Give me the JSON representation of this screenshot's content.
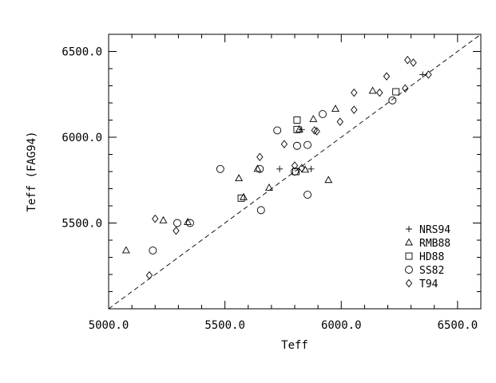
{
  "chart_data": {
    "type": "scatter",
    "xlabel": "Teff",
    "ylabel": "Teff (FAG94)",
    "xlim": [
      5000,
      6600
    ],
    "ylim": [
      5000,
      6600
    ],
    "xticks": [
      "5000.0",
      "5500.0",
      "6000.0",
      "6500.0"
    ],
    "yticks": [
      "5500.0",
      "6000.0",
      "6500.0"
    ],
    "reference_line": "y = x (dashed)",
    "legend_position": "bottom-right",
    "series": [
      {
        "name": "NRS94",
        "marker": "plus",
        "points": [
          [
            6350,
            6365
          ],
          [
            5735,
            5815
          ],
          [
            5830,
            6045
          ],
          [
            5870,
            5815
          ]
        ]
      },
      {
        "name": "RMB88",
        "marker": "triangle",
        "points": [
          [
            5075,
            5340
          ],
          [
            5235,
            5515
          ],
          [
            5340,
            5505
          ],
          [
            5560,
            5760
          ],
          [
            5580,
            5650
          ],
          [
            5640,
            5815
          ],
          [
            5690,
            5705
          ],
          [
            5820,
            6045
          ],
          [
            5845,
            5810
          ],
          [
            5880,
            6105
          ],
          [
            5945,
            5750
          ],
          [
            5975,
            6165
          ],
          [
            6135,
            6270
          ]
        ]
      },
      {
        "name": "HD88",
        "marker": "square",
        "points": [
          [
            5570,
            5645
          ],
          [
            5805,
            5800
          ],
          [
            5810,
            6045
          ],
          [
            5810,
            6100
          ],
          [
            6235,
            6265
          ]
        ]
      },
      {
        "name": "SS82",
        "marker": "circle",
        "points": [
          [
            5190,
            5340
          ],
          [
            5295,
            5500
          ],
          [
            5350,
            5500
          ],
          [
            5480,
            5815
          ],
          [
            5650,
            5815
          ],
          [
            5655,
            5575
          ],
          [
            5725,
            6040
          ],
          [
            5800,
            5800
          ],
          [
            5810,
            5950
          ],
          [
            5855,
            5955
          ],
          [
            5855,
            5665
          ],
          [
            5920,
            6135
          ],
          [
            6220,
            6215
          ]
        ]
      },
      {
        "name": "T94",
        "marker": "diamond",
        "points": [
          [
            5175,
            5195
          ],
          [
            5200,
            5525
          ],
          [
            5290,
            5455
          ],
          [
            5650,
            5885
          ],
          [
            5755,
            5960
          ],
          [
            5800,
            5835
          ],
          [
            5830,
            5820
          ],
          [
            5885,
            6040
          ],
          [
            5895,
            6035
          ],
          [
            5995,
            6090
          ],
          [
            6055,
            6160
          ],
          [
            6055,
            6260
          ],
          [
            6165,
            6260
          ],
          [
            6195,
            6355
          ],
          [
            6275,
            6285
          ],
          [
            6285,
            6450
          ],
          [
            6310,
            6435
          ],
          [
            6375,
            6365
          ]
        ]
      }
    ]
  }
}
